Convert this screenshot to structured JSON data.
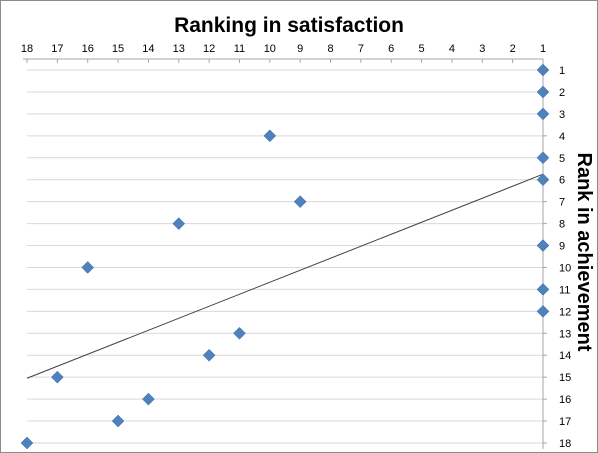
{
  "chart_data": {
    "type": "scatter",
    "title": "Ranking in satisfaction",
    "ylabel": "Rank in achievement",
    "xlim": [
      1,
      18
    ],
    "ylim": [
      1,
      18
    ],
    "x_axis_reversed": true,
    "x_axis_position": "top",
    "y_axis_position": "right",
    "grid": true,
    "x_ticks": [
      "18",
      "17",
      "16",
      "15",
      "14",
      "13",
      "12",
      "11",
      "10",
      "9",
      "8",
      "7",
      "6",
      "5",
      "4",
      "3",
      "2",
      "1"
    ],
    "y_ticks": [
      "1",
      "2",
      "3",
      "4",
      "5",
      "6",
      "7",
      "8",
      "9",
      "10",
      "11",
      "12",
      "13",
      "14",
      "15",
      "16",
      "17",
      "18"
    ],
    "points": [
      {
        "x": 1,
        "y": 1
      },
      {
        "x": 1,
        "y": 2
      },
      {
        "x": 1,
        "y": 3
      },
      {
        "x": 10,
        "y": 4
      },
      {
        "x": 1,
        "y": 5
      },
      {
        "x": 1,
        "y": 6
      },
      {
        "x": 9,
        "y": 7
      },
      {
        "x": 13,
        "y": 8
      },
      {
        "x": 1,
        "y": 9
      },
      {
        "x": 16,
        "y": 10
      },
      {
        "x": 1,
        "y": 11
      },
      {
        "x": 1,
        "y": 12
      },
      {
        "x": 11,
        "y": 13
      },
      {
        "x": 12,
        "y": 14
      },
      {
        "x": 17,
        "y": 15
      },
      {
        "x": 14,
        "y": 16
      },
      {
        "x": 15,
        "y": 17
      },
      {
        "x": 18,
        "y": 18
      }
    ],
    "trendline": {
      "type": "linear",
      "x": [
        18,
        1
      ],
      "y": [
        15.05,
        5.75
      ]
    },
    "colors": {
      "marker": "#4f81bd",
      "trendline": "#404040",
      "grid": "#d9d9d9"
    }
  }
}
